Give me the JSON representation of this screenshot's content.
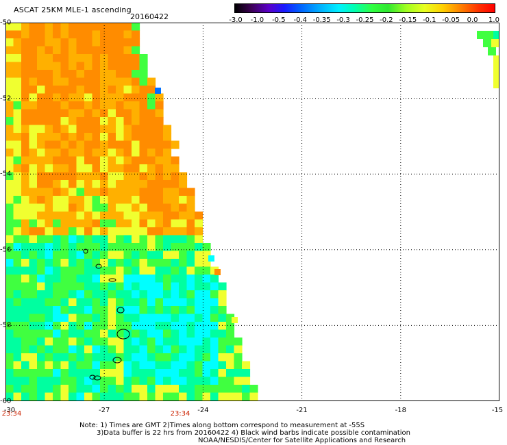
{
  "header": {
    "title": "ASCAT 25KM MLE-1 ascending",
    "date": "20160422"
  },
  "colorbar": {
    "labels": [
      "-3.0",
      "-1.0",
      "-0.5",
      "-0.4",
      "-0.35",
      "-0.3",
      "-0.25",
      "-0.2",
      "-0.15",
      "-0.1",
      "-0.05",
      "0.0",
      "1.0"
    ]
  },
  "map": {
    "lat_range": [
      -60,
      -50
    ],
    "lon_range": [
      -30,
      -15
    ],
    "lat_labels": [
      "-50",
      "-52",
      "-54",
      "-56",
      "-58",
      "-60"
    ],
    "lon_labels": [
      "-30",
      "-27",
      "-24",
      "-21",
      "-18",
      "-15"
    ],
    "time_labels": [
      "23:34",
      "23:34"
    ],
    "colors": {
      "orange": "#ff8c00",
      "yellow_orange": "#ffb000",
      "yellow": "#f0ff30",
      "green": "#40ff40",
      "cyan_green": "#00ffa0",
      "cyan": "#00ffff",
      "blue": "#0070ff"
    }
  },
  "notes": {
    "line1": "Note: 1) Times are GMT 2)Times along bottom correspond to measurement at -55S",
    "line2": "3)Data buffer is 22 hrs from 20160422 4) Black wind barbs indicate possible contamination",
    "line3": "NOAA/NESDIS/Center for Satellite Applications and Research"
  }
}
